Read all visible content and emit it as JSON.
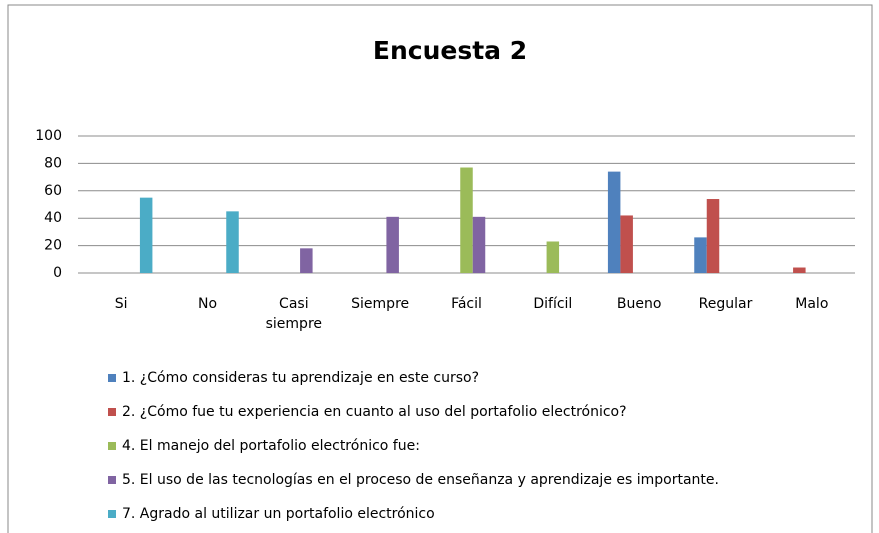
{
  "chart_data": {
    "type": "bar",
    "title": "Encuesta 2",
    "categories": [
      "Si",
      "No",
      "Casi siempre",
      "Siempre",
      "Fácil",
      "Difícil",
      "Bueno",
      "Regular",
      "Malo"
    ],
    "series": [
      {
        "name": "1. ¿Cómo consideras tu aprendizaje en este curso?",
        "color": "#4f81bd",
        "values": [
          null,
          null,
          null,
          null,
          null,
          null,
          74,
          26,
          null
        ]
      },
      {
        "name": "2. ¿Cómo fue tu experiencia en cuanto al uso del portafolio electrónico?",
        "color": "#c0504d",
        "values": [
          null,
          null,
          null,
          null,
          null,
          null,
          42,
          54,
          4
        ]
      },
      {
        "name": "4. El manejo del portafolio electrónico fue:",
        "color": "#9bbb59",
        "values": [
          null,
          null,
          null,
          null,
          77,
          23,
          null,
          null,
          null
        ]
      },
      {
        "name": "5. El uso de las tecnologías en el proceso de enseñanza y aprendizaje es importante.",
        "color": "#8064a2",
        "values": [
          null,
          null,
          18,
          41,
          41,
          null,
          null,
          null,
          null
        ]
      },
      {
        "name": "7. Agrado al utilizar un portafolio electrónico",
        "color": "#4bacc6",
        "values": [
          55,
          45,
          null,
          null,
          null,
          null,
          null,
          null,
          null
        ]
      }
    ],
    "ylim": [
      0,
      100
    ],
    "yticks": [
      0,
      20,
      40,
      60,
      80,
      100
    ],
    "grid": true
  }
}
